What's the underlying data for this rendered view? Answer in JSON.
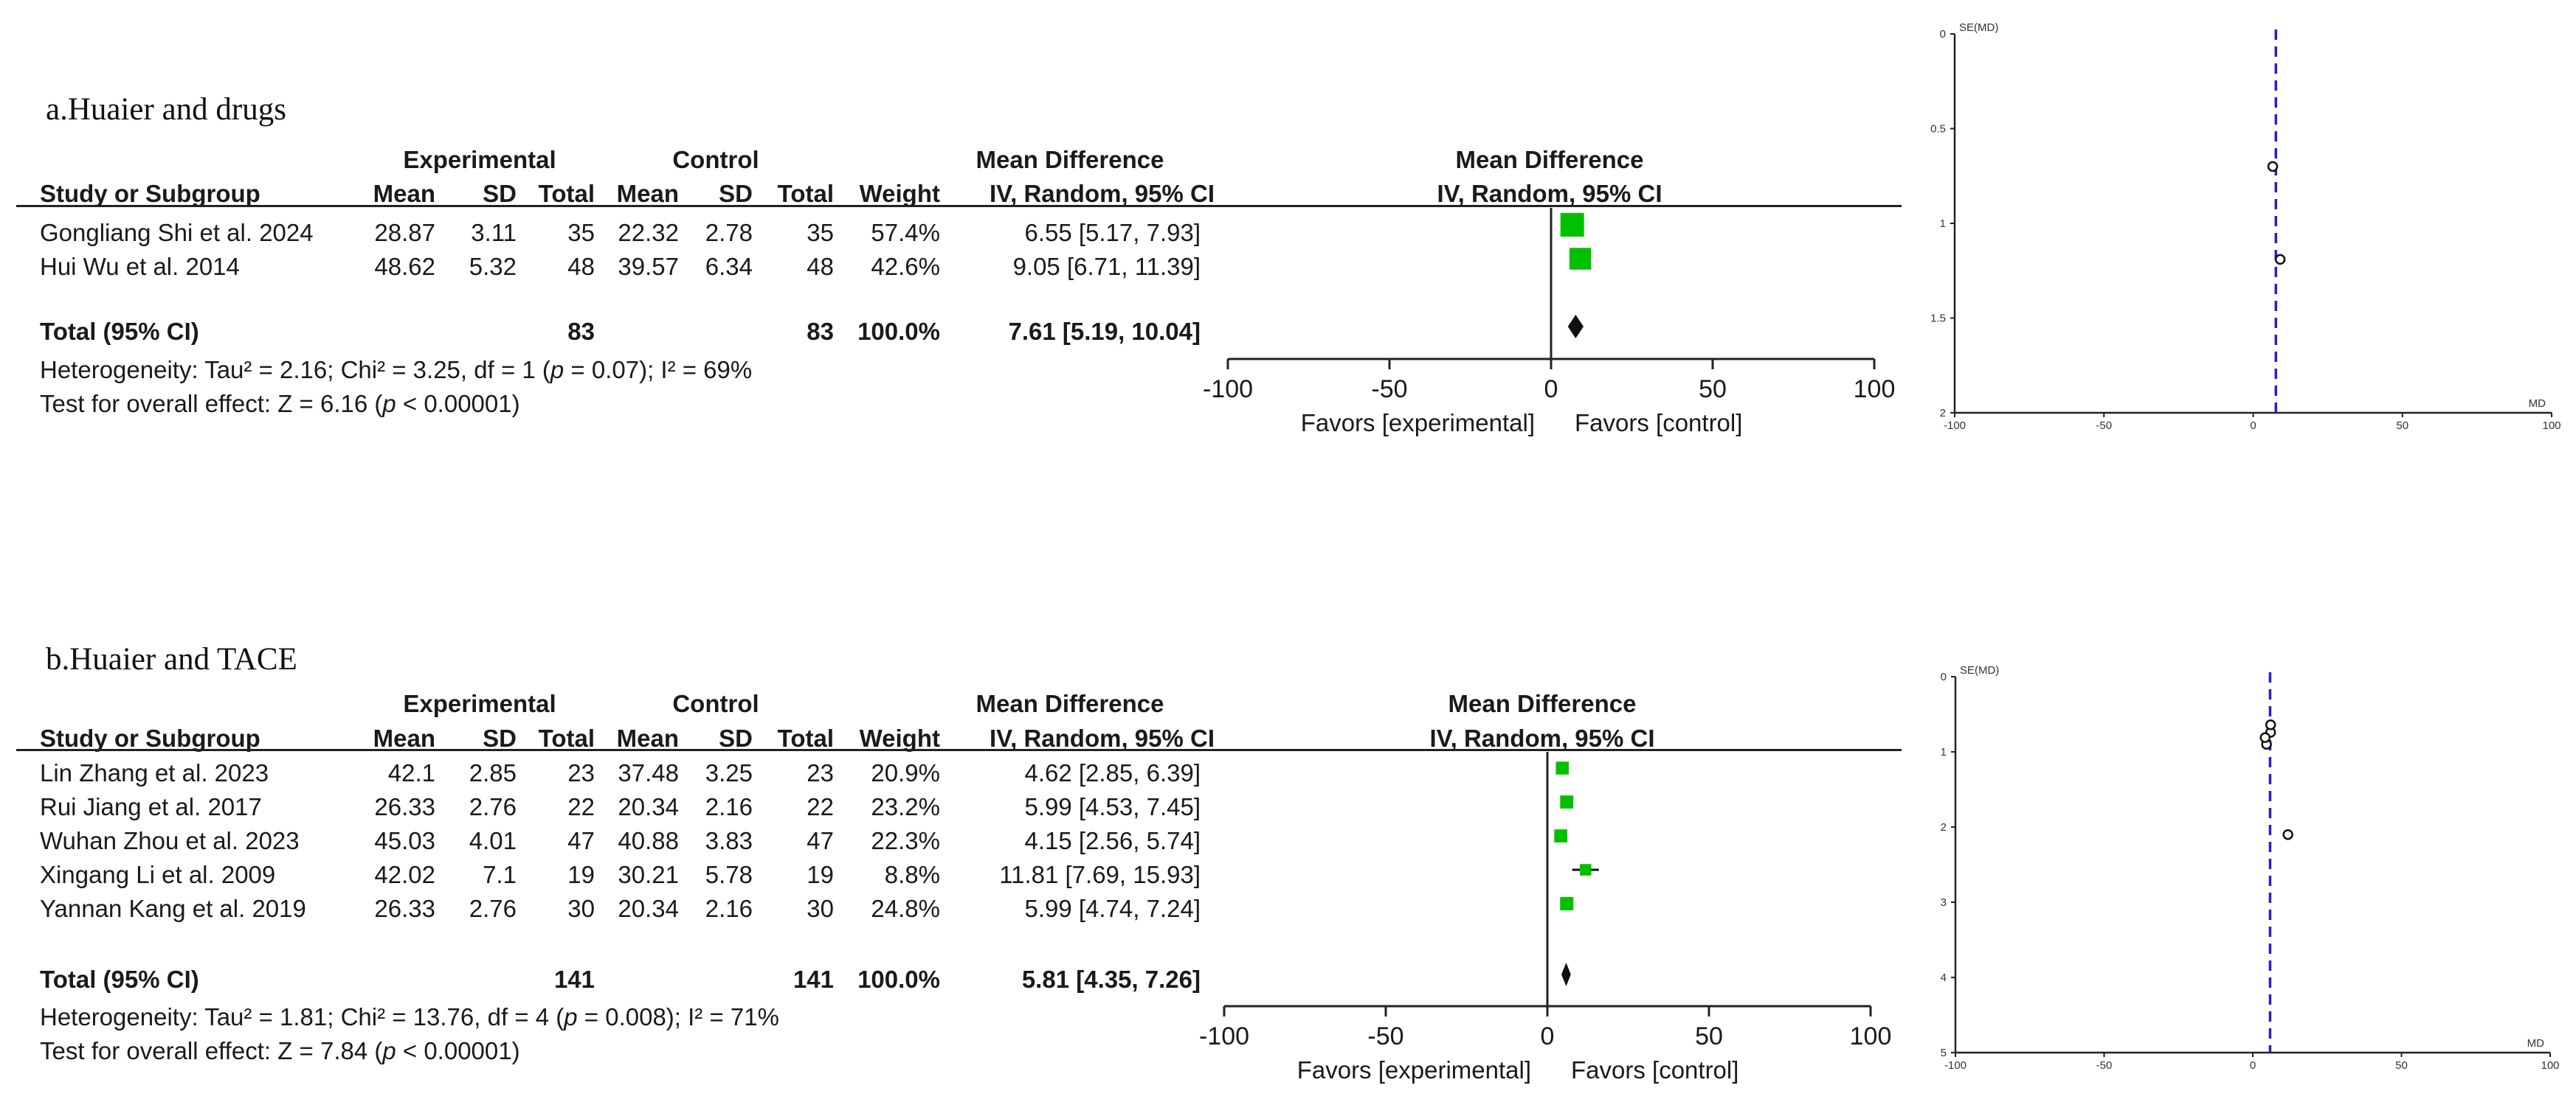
{
  "chart_data": [
    {
      "type": "table",
      "panel": "forest-plot",
      "title": "a.Huaier and drugs",
      "headers": {
        "experimental": "Experimental",
        "control": "Control",
        "study": "Study or Subgroup",
        "mean": "Mean",
        "sd": "SD",
        "total": "Total",
        "weight": "Weight",
        "md": "Mean Difference",
        "md_method": "IV, Random, 95% CI"
      },
      "studies": [
        {
          "name": "Gongliang Shi et al. 2024",
          "e_mean": "28.87",
          "e_sd": "3.11",
          "e_total": "35",
          "c_mean": "22.32",
          "c_sd": "2.78",
          "c_total": "35",
          "weight": "57.4%",
          "ci_text": "6.55 [5.17, 7.93]",
          "md": 6.55,
          "lo": 5.17,
          "hi": 7.93,
          "w": 57.4
        },
        {
          "name": "Hui Wu et al. 2014",
          "e_mean": "48.62",
          "e_sd": "5.32",
          "e_total": "48",
          "c_mean": "39.57",
          "c_sd": "6.34",
          "c_total": "48",
          "weight": "42.6%",
          "ci_text": "9.05 [6.71, 11.39]",
          "md": 9.05,
          "lo": 6.71,
          "hi": 11.39,
          "w": 42.6
        }
      ],
      "total": {
        "label": "Total (95% CI)",
        "e_total": "83",
        "c_total": "83",
        "weight": "100.0%",
        "ci_text": "7.61 [5.19, 10.04]",
        "md": 7.61,
        "lo": 5.19,
        "hi": 10.04
      },
      "heterogeneity": {
        "prefix": "Heterogeneity: Tau² = 2.16; Chi² = 3.25, df = 1 (",
        "p": "p",
        "suffix": " = 0.07); I² = 69%"
      },
      "overall": {
        "prefix": "Test for overall effect: Z = 6.16 (",
        "p": "p",
        "suffix": " < 0.00001)"
      },
      "xlim": [
        -100,
        100
      ],
      "ticks": [
        "-100",
        "-50",
        "0",
        "50",
        "100"
      ],
      "favors_left": "Favors [experimental]",
      "favors_right": "Favors [control]",
      "marker_color": "#00c000"
    },
    {
      "type": "scatter",
      "panel": "funnel-plot",
      "ylabel": "SE(MD)",
      "xlabel": "MD",
      "xlim": [
        -100,
        100
      ],
      "ylim": [
        0,
        2
      ],
      "xticks": [
        "-100",
        "-50",
        "0",
        "50",
        "100"
      ],
      "yticks": [
        "0",
        "0.5",
        "1",
        "1.5",
        "2"
      ],
      "pooled": 7.61,
      "points": [
        {
          "x": 6.55,
          "y": 0.7
        },
        {
          "x": 9.05,
          "y": 1.19
        }
      ],
      "line_color": "#2222cc"
    },
    {
      "type": "table",
      "panel": "forest-plot",
      "title": "b.Huaier and TACE",
      "headers": {
        "experimental": "Experimental",
        "control": "Control",
        "study": "Study or Subgroup",
        "mean": "Mean",
        "sd": "SD",
        "total": "Total",
        "weight": "Weight",
        "md": "Mean Difference",
        "md_method": "IV, Random, 95% CI"
      },
      "studies": [
        {
          "name": "Lin Zhang et al. 2023",
          "e_mean": "42.1",
          "e_sd": "2.85",
          "e_total": "23",
          "c_mean": "37.48",
          "c_sd": "3.25",
          "c_total": "23",
          "weight": "20.9%",
          "ci_text": "4.62 [2.85, 6.39]",
          "md": 4.62,
          "lo": 2.85,
          "hi": 6.39,
          "w": 20.9
        },
        {
          "name": "Rui Jiang et al. 2017",
          "e_mean": "26.33",
          "e_sd": "2.76",
          "e_total": "22",
          "c_mean": "20.34",
          "c_sd": "2.16",
          "c_total": "22",
          "weight": "23.2%",
          "ci_text": "5.99 [4.53, 7.45]",
          "md": 5.99,
          "lo": 4.53,
          "hi": 7.45,
          "w": 23.2
        },
        {
          "name": "Wuhan Zhou et al. 2023",
          "e_mean": "45.03",
          "e_sd": "4.01",
          "e_total": "47",
          "c_mean": "40.88",
          "c_sd": "3.83",
          "c_total": "47",
          "weight": "22.3%",
          "ci_text": "4.15 [2.56, 5.74]",
          "md": 4.15,
          "lo": 2.56,
          "hi": 5.74,
          "w": 22.3
        },
        {
          "name": "Xingang Li et al. 2009",
          "e_mean": "42.02",
          "e_sd": "7.1",
          "e_total": "19",
          "c_mean": "30.21",
          "c_sd": "5.78",
          "c_total": "19",
          "weight": "8.8%",
          "ci_text": "11.81 [7.69, 15.93]",
          "md": 11.81,
          "lo": 7.69,
          "hi": 15.93,
          "w": 8.8
        },
        {
          "name": "Yannan Kang et al. 2019",
          "e_mean": "26.33",
          "e_sd": "2.76",
          "e_total": "30",
          "c_mean": "20.34",
          "c_sd": "2.16",
          "c_total": "30",
          "weight": "24.8%",
          "ci_text": "5.99 [4.74, 7.24]",
          "md": 5.99,
          "lo": 4.74,
          "hi": 7.24,
          "w": 24.8
        }
      ],
      "total": {
        "label": "Total (95% CI)",
        "e_total": "141",
        "c_total": "141",
        "weight": "100.0%",
        "ci_text": "5.81 [4.35, 7.26]",
        "md": 5.81,
        "lo": 4.35,
        "hi": 7.26
      },
      "heterogeneity": {
        "prefix": "Heterogeneity: Tau² = 1.81; Chi² = 13.76, df = 4 (",
        "p": "p",
        "suffix": " = 0.008); I² = 71%"
      },
      "overall": {
        "prefix": "Test for overall effect: Z = 7.84 (",
        "p": "p",
        "suffix": " < 0.00001)"
      },
      "xlim": [
        -100,
        100
      ],
      "ticks": [
        "-100",
        "-50",
        "0",
        "50",
        "100"
      ],
      "favors_left": "Favors [experimental]",
      "favors_right": "Favors [control]",
      "marker_color": "#00c000"
    },
    {
      "type": "scatter",
      "panel": "funnel-plot",
      "ylabel": "SE(MD)",
      "xlabel": "MD",
      "xlim": [
        -100,
        100
      ],
      "ylim": [
        0,
        5
      ],
      "xticks": [
        "-100",
        "-50",
        "0",
        "50",
        "100"
      ],
      "yticks": [
        "0",
        "1",
        "2",
        "3",
        "4",
        "5"
      ],
      "pooled": 5.81,
      "points": [
        {
          "x": 4.62,
          "y": 0.9
        },
        {
          "x": 5.99,
          "y": 0.74
        },
        {
          "x": 4.15,
          "y": 0.81
        },
        {
          "x": 11.81,
          "y": 2.1
        },
        {
          "x": 5.99,
          "y": 0.64
        }
      ],
      "line_color": "#2222cc"
    }
  ]
}
